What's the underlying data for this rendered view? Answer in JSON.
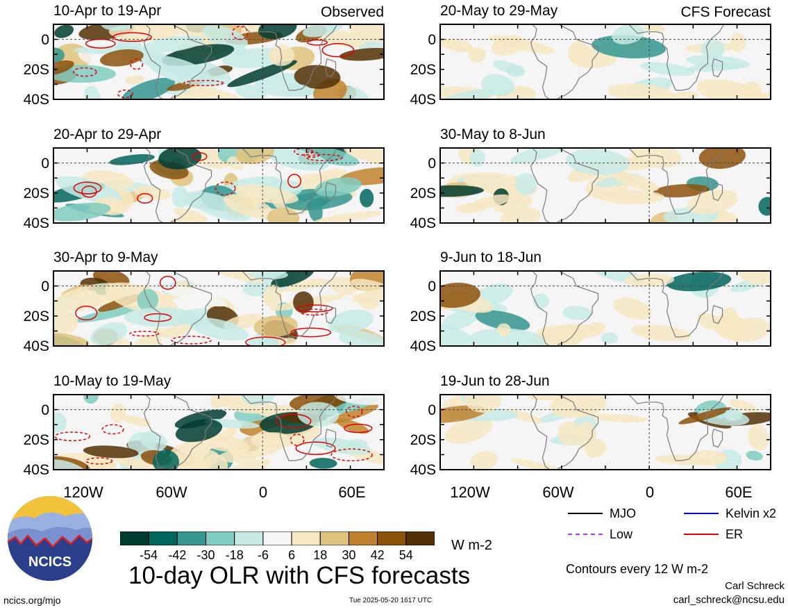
{
  "colors": {
    "scale": [
      "#003c30",
      "#01665e",
      "#35978f",
      "#80cdc1",
      "#c7eae5",
      "#f5f5f5",
      "#f6e8c3",
      "#dfc27d",
      "#bf812d",
      "#8c510a",
      "#543005"
    ],
    "mjo": "#000000",
    "kelvin": "#0000dd",
    "low": "#a040e0",
    "er": "#e00000",
    "land_outline": "#7a7a7a"
  },
  "map_panels": [
    {
      "id": "obs-1",
      "title": "10-Apr to 19-Apr",
      "label": "Observed"
    },
    {
      "id": "obs-2",
      "title": "20-Apr to 29-Apr",
      "label": ""
    },
    {
      "id": "obs-3",
      "title": "30-Apr to 9-May",
      "label": ""
    },
    {
      "id": "obs-4",
      "title": "10-May to 19-May",
      "label": ""
    },
    {
      "id": "fc-1",
      "title": "20-May to 29-May",
      "label": "CFS Forecast"
    },
    {
      "id": "fc-2",
      "title": "30-May to 8-Jun",
      "label": ""
    },
    {
      "id": "fc-3",
      "title": "9-Jun to 18-Jun",
      "label": ""
    },
    {
      "id": "fc-4",
      "title": "19-Jun to 28-Jun",
      "label": ""
    }
  ],
  "lat_labels": [
    "0",
    "20S",
    "40S"
  ],
  "lon_labels": [
    "120W",
    "60W",
    "0",
    "60E"
  ],
  "colorbar": {
    "ticks": [
      "-54",
      "-42",
      "-30",
      "-18",
      "-6",
      "6",
      "18",
      "30",
      "42",
      "54"
    ],
    "units": "W m-2"
  },
  "legend": {
    "mjo": "MJO",
    "kelvin": "Kelvin x2",
    "low": "Low",
    "er": "ER"
  },
  "title": "10-day OLR with CFS forecasts",
  "contour_note": "Contours every 12 W m-2",
  "author": "Carl Schreck",
  "email": "carl_schreck@ncsu.edu",
  "website": "ncics.org/mjo",
  "timestamp": "Tue 2025-05-20 1617 UTC",
  "logo_text": "NCICS"
}
